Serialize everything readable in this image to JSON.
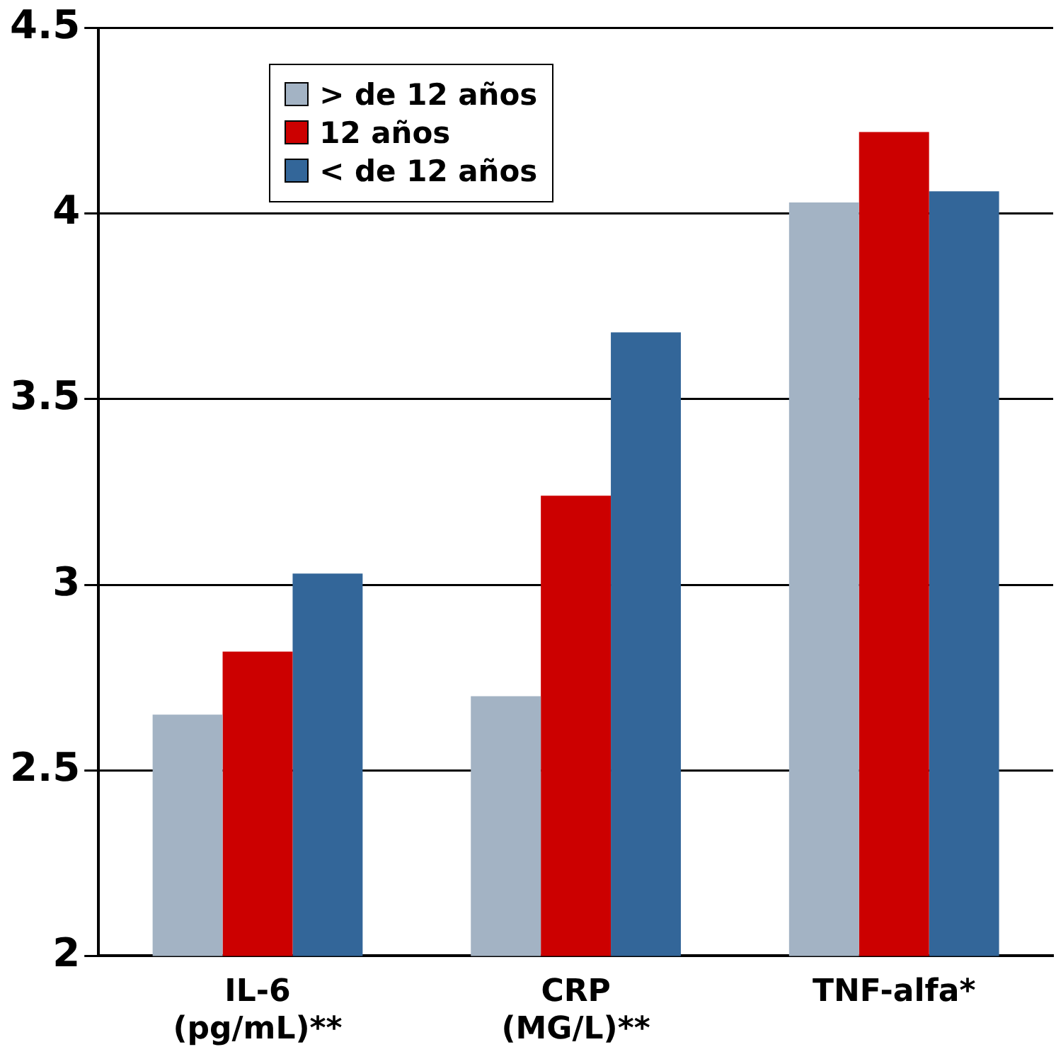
{
  "chart_data": {
    "type": "bar",
    "categories": [
      "IL-6 (pg/mL)**",
      "CRP (MG/L)**",
      "TNF-alfa*"
    ],
    "series": [
      {
        "name": "> de 12 años",
        "color": "#a3b3c4",
        "values": [
          2.65,
          2.7,
          4.03
        ]
      },
      {
        "name": "12 años",
        "color": "#cc0000",
        "values": [
          2.82,
          3.24,
          4.22
        ]
      },
      {
        "name": "< de 12 años",
        "color": "#336699",
        "values": [
          3.03,
          3.68,
          4.06
        ]
      }
    ],
    "ylim": [
      2,
      4.5
    ],
    "yticks": [
      2,
      2.5,
      3,
      3.5,
      4,
      4.5
    ],
    "grid": "y",
    "legend": "top left"
  }
}
